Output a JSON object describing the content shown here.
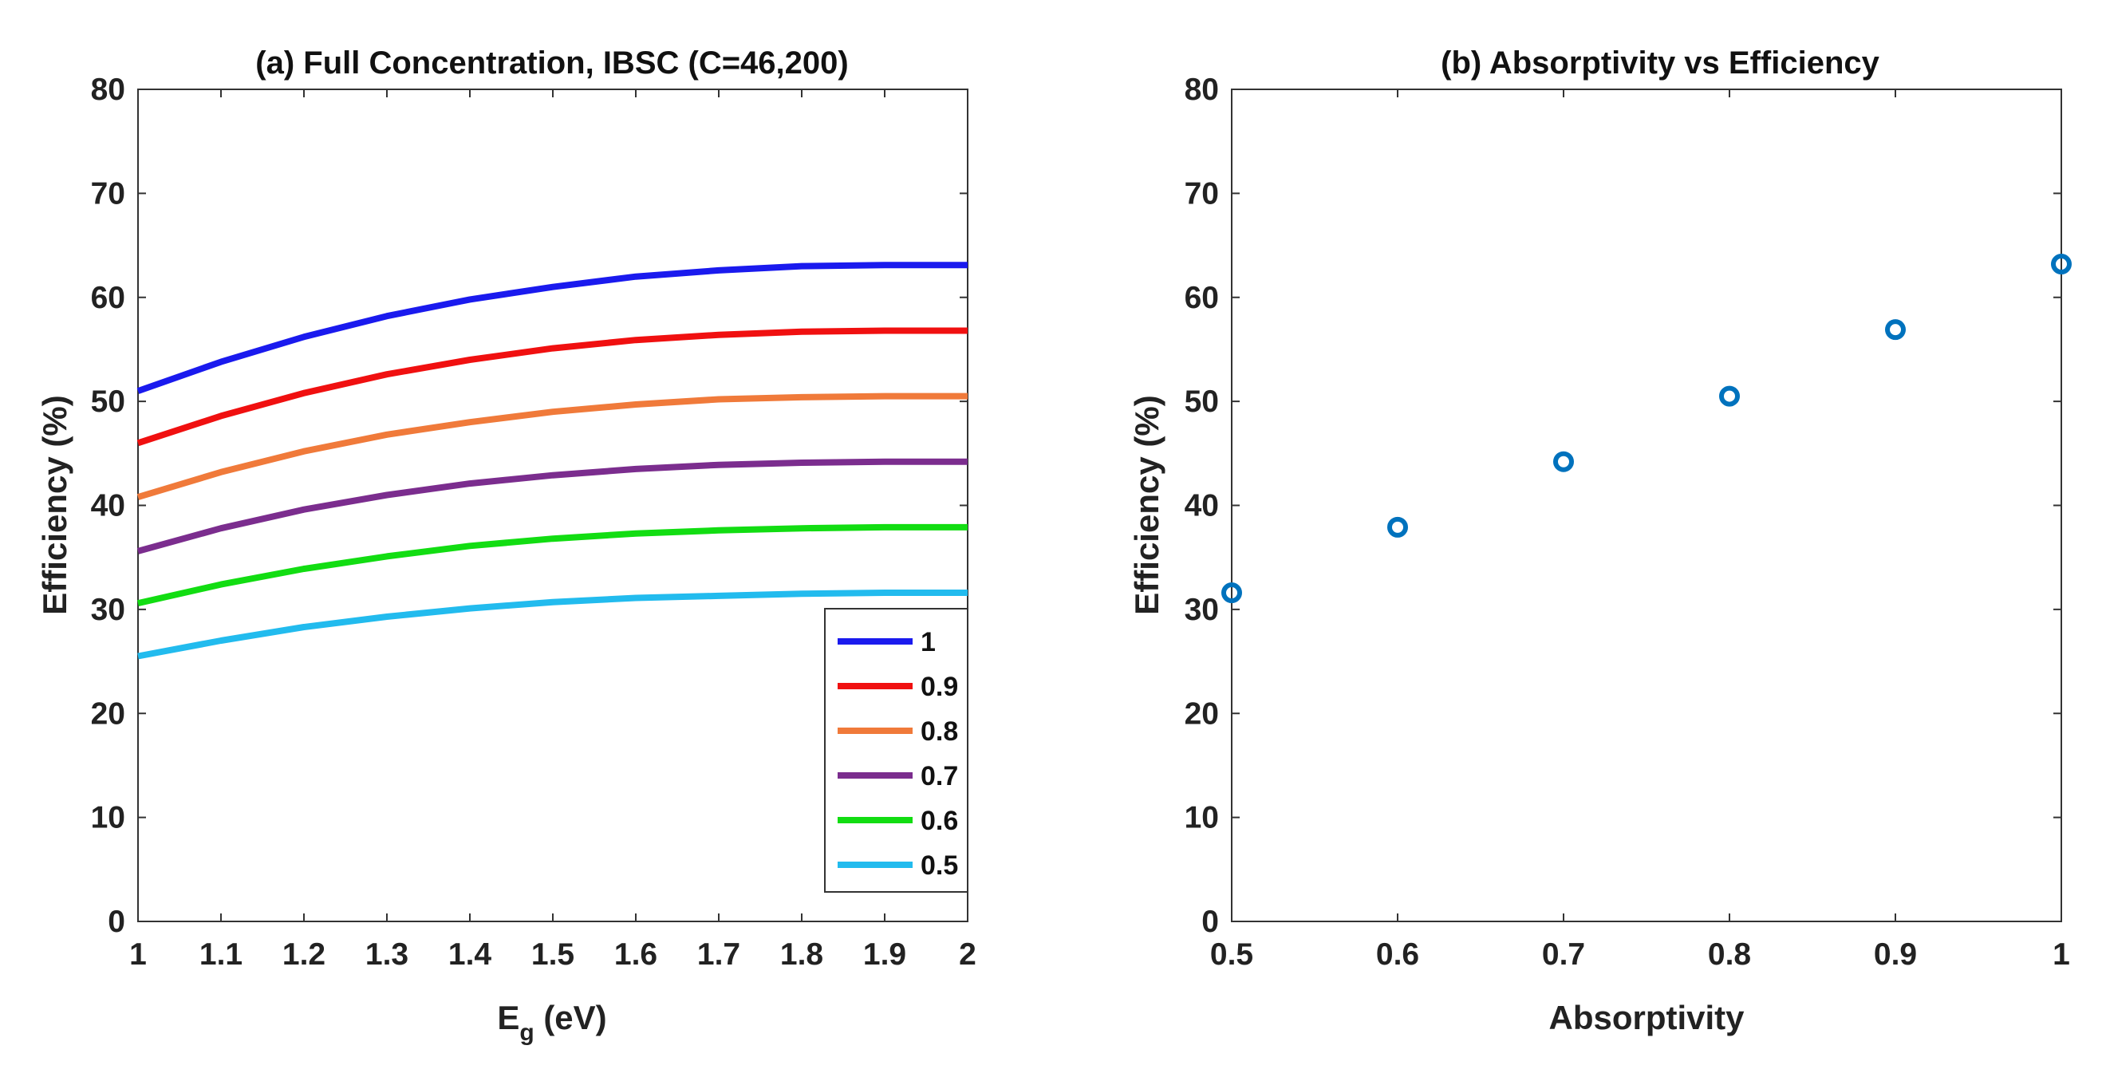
{
  "chart_data": [
    {
      "type": "line",
      "title": "(a) Full Concentration, IBSC (C=46,200)",
      "xlabel_main": "E",
      "xlabel_sub": "g",
      "xlabel_rest": " (eV)",
      "ylabel": "Efficiency (%)",
      "xlim": [
        1,
        2
      ],
      "ylim": [
        0,
        80
      ],
      "xticks": [
        1,
        1.1,
        1.2,
        1.3,
        1.4,
        1.5,
        1.6,
        1.7,
        1.8,
        1.9,
        2
      ],
      "xtick_labels": [
        "1",
        "1.1",
        "1.2",
        "1.3",
        "1.4",
        "1.5",
        "1.6",
        "1.7",
        "1.8",
        "1.9",
        "2"
      ],
      "yticks": [
        0,
        10,
        20,
        30,
        40,
        50,
        60,
        70,
        80
      ],
      "ytick_labels": [
        "0",
        "10",
        "20",
        "30",
        "40",
        "50",
        "60",
        "70",
        "80"
      ],
      "legend_position": "bottom-right",
      "x": [
        1.0,
        1.1,
        1.2,
        1.3,
        1.4,
        1.5,
        1.6,
        1.7,
        1.8,
        1.9,
        2.0
      ],
      "series": [
        {
          "name": "1",
          "color": "#1a1aee",
          "values": [
            51.0,
            53.8,
            56.2,
            58.2,
            59.8,
            61.0,
            62.0,
            62.6,
            63.0,
            63.1,
            63.1
          ]
        },
        {
          "name": "0.9",
          "color": "#f01010",
          "values": [
            46.0,
            48.6,
            50.8,
            52.6,
            54.0,
            55.1,
            55.9,
            56.4,
            56.7,
            56.8,
            56.8
          ]
        },
        {
          "name": "0.8",
          "color": "#f07a3a",
          "values": [
            40.8,
            43.2,
            45.2,
            46.8,
            48.0,
            49.0,
            49.7,
            50.2,
            50.4,
            50.5,
            50.5
          ]
        },
        {
          "name": "0.7",
          "color": "#7b2d8e",
          "values": [
            35.6,
            37.8,
            39.6,
            41.0,
            42.1,
            42.9,
            43.5,
            43.9,
            44.1,
            44.2,
            44.2
          ]
        },
        {
          "name": "0.6",
          "color": "#12dd12",
          "values": [
            30.6,
            32.4,
            33.9,
            35.1,
            36.1,
            36.8,
            37.3,
            37.6,
            37.8,
            37.9,
            37.9
          ]
        },
        {
          "name": "0.5",
          "color": "#22bbee",
          "values": [
            25.5,
            27.0,
            28.3,
            29.3,
            30.1,
            30.7,
            31.1,
            31.3,
            31.5,
            31.6,
            31.6
          ]
        }
      ]
    },
    {
      "type": "scatter",
      "title": "(b) Absorptivity vs Efficiency",
      "xlabel": "Absorptivity",
      "ylabel": "Efficiency (%)",
      "xlim": [
        0.5,
        1
      ],
      "ylim": [
        0,
        80
      ],
      "xticks": [
        0.5,
        0.6,
        0.7,
        0.8,
        0.9,
        1
      ],
      "xtick_labels": [
        "0.5",
        "0.6",
        "0.7",
        "0.8",
        "0.9",
        "1"
      ],
      "yticks": [
        0,
        10,
        20,
        30,
        40,
        50,
        60,
        70,
        80
      ],
      "ytick_labels": [
        "0",
        "10",
        "20",
        "30",
        "40",
        "50",
        "60",
        "70",
        "80"
      ],
      "marker_color": "#0072bd",
      "x": [
        0.5,
        0.6,
        0.7,
        0.8,
        0.9,
        1.0
      ],
      "y": [
        31.6,
        37.9,
        44.2,
        50.5,
        56.9,
        63.2
      ]
    }
  ]
}
